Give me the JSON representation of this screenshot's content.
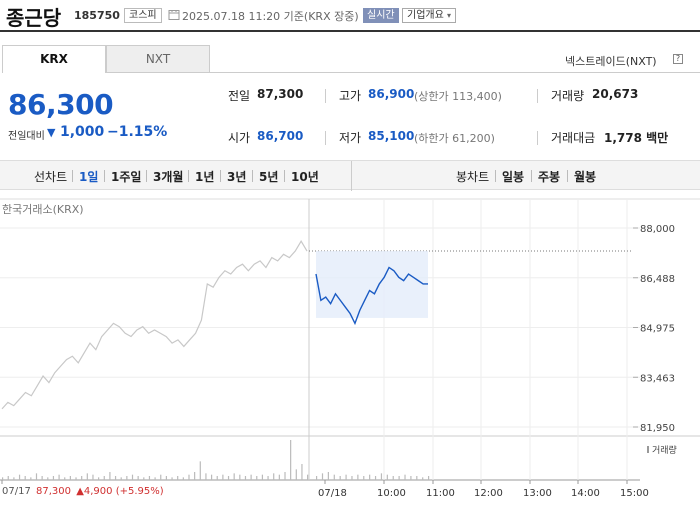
{
  "header": {
    "company_name": "종근당",
    "code": "185750",
    "market": "코스피",
    "date_text": "2025.07.18 11:20 기준(KRX 장중)",
    "realtime_label": "실시간",
    "overview_label": "기업개요",
    "overview_icon": "chevron-down-icon"
  },
  "tabs": {
    "krx": "KRX",
    "nxt": "NXT",
    "nxt_link": "넥스트레이드(NXT)",
    "help_icon": "?"
  },
  "quote": {
    "price": "86,300",
    "diff_label": "전일대비",
    "diff_arrow": "▼",
    "diff_value": "1,000",
    "diff_pct": "−1.15%",
    "prev_close_label": "전일",
    "prev_close": "87,300",
    "high_label": "고가",
    "high": "86,900",
    "upper_limit": "(상한가 113,400)",
    "volume_label": "거래량",
    "volume": "20,673",
    "open_label": "시가",
    "open": "86,700",
    "low_label": "저가",
    "low": "85,100",
    "lower_limit": "(하한가 61,200)",
    "amount_label": "거래대금",
    "amount": "1,778 백만",
    "up_color": "#d03030",
    "down_color": "#1a5bc4"
  },
  "toolbar": {
    "line_chart_label": "선차트",
    "periods": [
      "1일",
      "1주일",
      "3개월",
      "1년",
      "3년",
      "5년",
      "10년"
    ],
    "active_period": "1일",
    "candle_chart_label": "봉차트",
    "candles": [
      "일봉",
      "주봉",
      "월봉"
    ]
  },
  "chart_data": {
    "type": "line",
    "source_label": "한국거래소(KRX)",
    "y_ticks": [
      "88,000",
      "86,488",
      "84,975",
      "83,463",
      "81,950"
    ],
    "ylim": [
      81950,
      88000
    ],
    "prev_close_line": 87300,
    "x_ticks": [
      "07/17",
      "07/18",
      "10:00",
      "11:00",
      "12:00",
      "13:00",
      "14:00",
      "15:00"
    ],
    "prev_day_summary": {
      "date": "07/17",
      "close": "87,300",
      "change": "▲4,900",
      "pct": "(+5.95%)"
    },
    "volume_legend": "거래량",
    "series": [
      {
        "name": "07/17",
        "color": "#c8c8c8",
        "values": [
          82500,
          82700,
          82600,
          82800,
          83000,
          82900,
          83200,
          83500,
          83300,
          83600,
          83800,
          84000,
          84100,
          83900,
          84200,
          84500,
          84300,
          84700,
          84900,
          85100,
          85000,
          84800,
          84700,
          84900,
          85000,
          84800,
          84900,
          84800,
          84700,
          84500,
          84600,
          84400,
          84600,
          84800,
          85200,
          86300,
          86200,
          86500,
          86700,
          86600,
          86800,
          86900,
          86700,
          86900,
          87000,
          86800,
          87100,
          87000,
          87200,
          87100,
          87300,
          87600,
          87300
        ]
      },
      {
        "name": "07/18",
        "color": "#1a5bc4",
        "values": [
          86600,
          85800,
          85900,
          85700,
          86000,
          85800,
          85600,
          85400,
          85100,
          85500,
          85800,
          86100,
          86000,
          86300,
          86500,
          86800,
          86700,
          86500,
          86400,
          86600,
          86500,
          86400,
          86300,
          86300
        ]
      }
    ],
    "volume": [
      2,
      3,
      2,
      4,
      3,
      2,
      5,
      3,
      2,
      3,
      4,
      2,
      3,
      2,
      3,
      5,
      4,
      2,
      3,
      6,
      3,
      2,
      3,
      4,
      3,
      2,
      3,
      2,
      4,
      3,
      2,
      3,
      2,
      4,
      6,
      14,
      5,
      4,
      3,
      4,
      3,
      5,
      4,
      3,
      4,
      3,
      4,
      3,
      5,
      4,
      6,
      30,
      8,
      12,
      4,
      3,
      5,
      6,
      4,
      3,
      4,
      3,
      4,
      3,
      4,
      3,
      5,
      4,
      3,
      3,
      4,
      3,
      3,
      2,
      3
    ]
  }
}
